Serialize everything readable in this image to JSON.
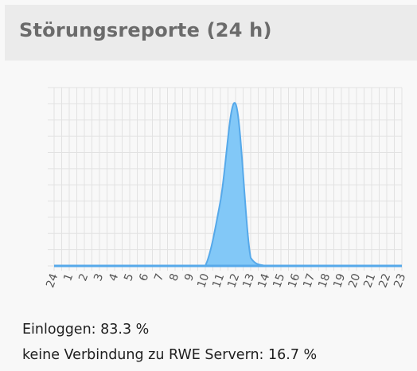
{
  "header": {
    "title": "Störungsreporte (24 h)"
  },
  "chart_data": {
    "type": "area",
    "title": "Störungsreporte (24 h)",
    "xlabel": "",
    "ylabel": "",
    "x": [
      "24",
      "1",
      "2",
      "3",
      "4",
      "5",
      "6",
      "7",
      "8",
      "9",
      "10",
      "11",
      "12",
      "13",
      "14",
      "15",
      "16",
      "17",
      "18",
      "19",
      "20",
      "21",
      "22",
      "23"
    ],
    "values": [
      0,
      0,
      0,
      0,
      0,
      0,
      0,
      0,
      0,
      0,
      0,
      0.4,
      1,
      0.05,
      0,
      0,
      0,
      0,
      0,
      0,
      0,
      0,
      0,
      0
    ],
    "ylim": [
      0,
      1.1
    ],
    "grid": true,
    "legend": "none",
    "colors": {
      "fill": "#82c8f7",
      "stroke": "#56a9ea",
      "grid": "#e2e2e2"
    }
  },
  "stats": [
    {
      "label": "Einloggen",
      "value": "83.3 %"
    },
    {
      "label": "keine Verbindung zu RWE Servern",
      "value": "16.7 %"
    }
  ]
}
